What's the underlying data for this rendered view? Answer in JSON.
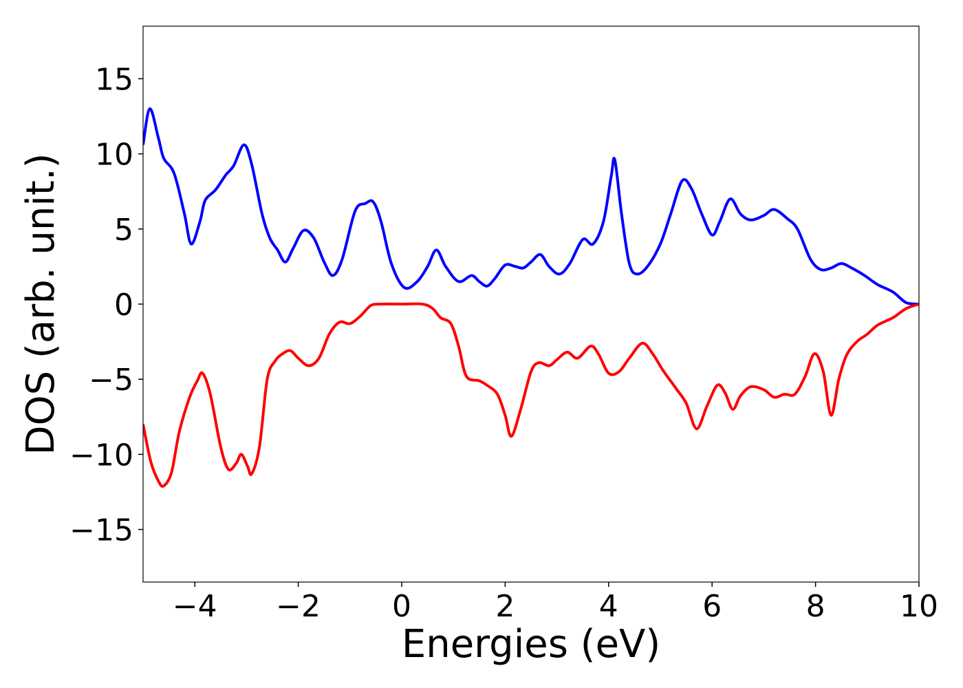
{
  "chart_data": {
    "type": "line",
    "xlabel": "Energies (eV)",
    "ylabel": "DOS (arb. unit.)",
    "xlim": [
      -5,
      10
    ],
    "ylim": [
      -18.5,
      18.5
    ],
    "xticks": [
      {
        "value": -4,
        "label": "−4"
      },
      {
        "value": -2,
        "label": "−2"
      },
      0,
      2,
      4,
      6,
      8,
      10
    ],
    "yticks": [
      {
        "value": -15,
        "label": "−15"
      },
      {
        "value": -10,
        "label": "−10"
      },
      {
        "value": -5,
        "label": "−5"
      },
      0,
      5,
      10,
      15
    ],
    "series": [
      {
        "color": "#0000ff",
        "x": [
          -5,
          -4.87,
          -4.7,
          -4.6,
          -4.4,
          -4.2,
          -4.07,
          -3.9,
          -3.8,
          -3.6,
          -3.4,
          -3.25,
          -3.05,
          -2.9,
          -2.7,
          -2.55,
          -2.4,
          -2.25,
          -2.1,
          -1.9,
          -1.7,
          -1.5,
          -1.33,
          -1.15,
          -0.9,
          -0.7,
          -0.55,
          -0.4,
          -0.2,
          0.05,
          0.3,
          0.5,
          0.67,
          0.85,
          1.1,
          1.35,
          1.5,
          1.65,
          1.8,
          2.0,
          2.2,
          2.35,
          2.5,
          2.68,
          2.85,
          3.05,
          3.25,
          3.5,
          3.7,
          3.9,
          4.05,
          4.12,
          4.25,
          4.4,
          4.55,
          4.75,
          5.0,
          5.2,
          5.42,
          5.6,
          5.8,
          6.0,
          6.15,
          6.35,
          6.55,
          6.75,
          7.0,
          7.2,
          7.45,
          7.65,
          7.9,
          8.1,
          8.3,
          8.5,
          8.7,
          8.95,
          9.2,
          9.5,
          9.75,
          10
        ],
        "values": [
          10.6,
          13.0,
          11.0,
          9.7,
          8.7,
          6.0,
          4.0,
          5.5,
          6.9,
          7.6,
          8.6,
          9.2,
          10.6,
          9.3,
          6.0,
          4.4,
          3.6,
          2.8,
          3.7,
          4.9,
          4.4,
          2.8,
          1.9,
          3.0,
          6.2,
          6.7,
          6.8,
          5.5,
          2.7,
          1.1,
          1.5,
          2.5,
          3.6,
          2.5,
          1.5,
          1.9,
          1.5,
          1.2,
          1.7,
          2.6,
          2.5,
          2.4,
          2.8,
          3.3,
          2.5,
          2.0,
          2.7,
          4.3,
          4.0,
          5.5,
          8.5,
          9.6,
          6.0,
          2.7,
          2.0,
          2.5,
          4.0,
          6.0,
          8.2,
          7.7,
          6.0,
          4.6,
          5.5,
          7.0,
          6.0,
          5.6,
          5.9,
          6.3,
          5.7,
          5.0,
          3.0,
          2.3,
          2.4,
          2.7,
          2.4,
          1.9,
          1.3,
          0.8,
          0.1,
          0
        ]
      },
      {
        "color": "#ff0000",
        "x": [
          -5,
          -4.85,
          -4.7,
          -4.6,
          -4.45,
          -4.3,
          -4.1,
          -3.95,
          -3.85,
          -3.7,
          -3.5,
          -3.35,
          -3.2,
          -3.1,
          -2.98,
          -2.9,
          -2.75,
          -2.6,
          -2.45,
          -2.3,
          -2.15,
          -2.0,
          -1.8,
          -1.6,
          -1.4,
          -1.2,
          -1.0,
          -0.8,
          -0.6,
          -0.4,
          0,
          0.4,
          0.6,
          0.75,
          0.95,
          1.1,
          1.25,
          1.5,
          1.65,
          1.85,
          2.0,
          2.12,
          2.3,
          2.5,
          2.65,
          2.85,
          3.0,
          3.2,
          3.4,
          3.65,
          3.8,
          4.0,
          4.2,
          4.4,
          4.65,
          4.85,
          5.05,
          5.3,
          5.5,
          5.7,
          5.9,
          6.1,
          6.25,
          6.4,
          6.55,
          6.75,
          7.0,
          7.2,
          7.4,
          7.6,
          7.8,
          7.98,
          8.15,
          8.3,
          8.45,
          8.6,
          8.8,
          9.0,
          9.2,
          9.5,
          9.75,
          10
        ],
        "values": [
          -8.0,
          -10.5,
          -11.8,
          -12.1,
          -11.2,
          -8.5,
          -6.2,
          -5.1,
          -4.6,
          -6.0,
          -9.5,
          -11.0,
          -10.6,
          -10.0,
          -10.8,
          -11.3,
          -9.5,
          -5.0,
          -3.8,
          -3.3,
          -3.1,
          -3.6,
          -4.1,
          -3.6,
          -2.0,
          -1.2,
          -1.3,
          -0.8,
          -0.1,
          0,
          0,
          0,
          -0.3,
          -0.9,
          -1.3,
          -2.8,
          -4.8,
          -5.1,
          -5.4,
          -6.0,
          -7.4,
          -8.8,
          -7.0,
          -4.5,
          -3.9,
          -4.1,
          -3.7,
          -3.2,
          -3.6,
          -2.8,
          -3.3,
          -4.6,
          -4.5,
          -3.6,
          -2.6,
          -3.3,
          -4.4,
          -5.6,
          -6.6,
          -8.3,
          -6.8,
          -5.4,
          -5.9,
          -7.0,
          -6.1,
          -5.5,
          -5.7,
          -6.2,
          -6.0,
          -6.0,
          -4.8,
          -3.3,
          -4.5,
          -7.4,
          -5.0,
          -3.4,
          -2.5,
          -2.0,
          -1.4,
          -0.9,
          -0.3,
          0
        ]
      }
    ]
  }
}
